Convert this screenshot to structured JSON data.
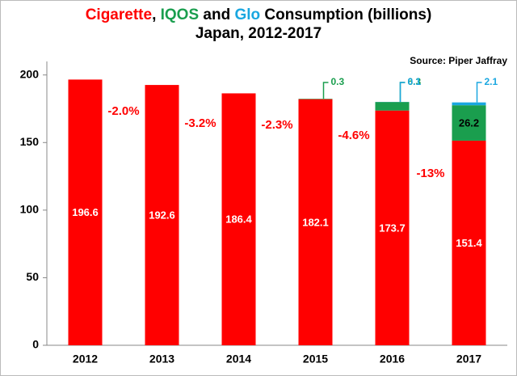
{
  "chart_data": {
    "type": "stacked_bar",
    "title_pieces": [
      ", ",
      " and ",
      " Consumption (billions)"
    ],
    "subtitle": "Japan, 2012-2017",
    "source": "Source: Piper Jaffray",
    "categories": [
      "2012",
      "2013",
      "2014",
      "2015",
      "2016",
      "2017"
    ],
    "series": [
      {
        "name": "Cigarette",
        "color": "#ff0000",
        "values": [
          196.6,
          192.6,
          186.4,
          182.1,
          173.7,
          151.4
        ]
      },
      {
        "name": "IQOS",
        "color": "#1a9e4e",
        "values": [
          null,
          null,
          null,
          0.3,
          6.3,
          26.2
        ]
      },
      {
        "name": "Glo",
        "color": "#1aa7e0",
        "values": [
          null,
          null,
          null,
          null,
          0.1,
          2.1
        ]
      }
    ],
    "annotations": [
      "-2.0%",
      "-3.2%",
      "-2.3%",
      "-4.6%",
      "-13%"
    ],
    "ylim": [
      0,
      210
    ],
    "yticks": [
      0,
      50,
      100,
      150,
      200
    ],
    "grid": false
  }
}
